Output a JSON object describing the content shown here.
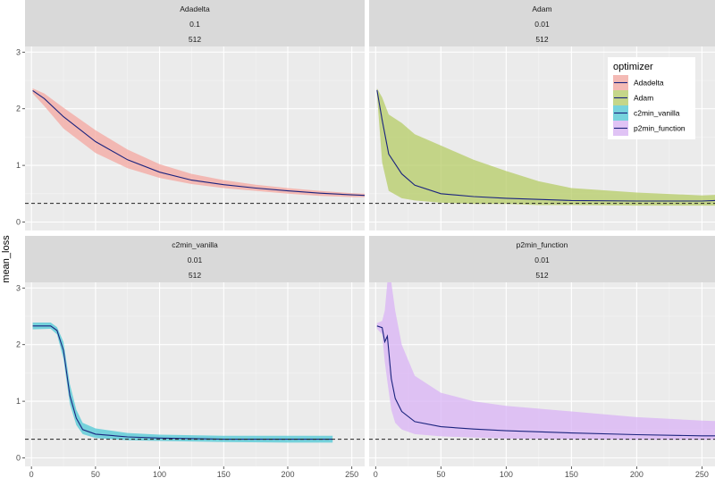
{
  "chart_data": {
    "type": "line",
    "ylabel": "mean_loss",
    "xlabel": "",
    "xlim": [
      -5,
      260
    ],
    "ylim": [
      -0.15,
      3.1
    ],
    "x_ticks": [
      0,
      50,
      100,
      150,
      200,
      250
    ],
    "y_ticks": [
      0,
      1,
      2,
      3
    ],
    "grid": true,
    "legend_position": "inside-top-right",
    "legend_title": "optimizer",
    "reference_line": {
      "y": 0.33,
      "style": "dashed"
    },
    "series": [
      {
        "name": "Adadelta",
        "facet_strip": [
          "Adadelta",
          "0.1",
          "512"
        ],
        "ribbon_color": "#f4a7a0",
        "line_color": "#1a237e",
        "mean": [
          [
            1,
            2.32
          ],
          [
            10,
            2.18
          ],
          [
            25,
            1.86
          ],
          [
            50,
            1.42
          ],
          [
            75,
            1.1
          ],
          [
            100,
            0.88
          ],
          [
            125,
            0.74
          ],
          [
            150,
            0.66
          ],
          [
            175,
            0.6
          ],
          [
            200,
            0.55
          ],
          [
            225,
            0.51
          ],
          [
            250,
            0.48
          ],
          [
            260,
            0.47
          ]
        ],
        "ribbon": [
          [
            1,
            2.27,
            2.36
          ],
          [
            10,
            2.05,
            2.27
          ],
          [
            25,
            1.65,
            2.02
          ],
          [
            50,
            1.22,
            1.62
          ],
          [
            75,
            0.95,
            1.28
          ],
          [
            100,
            0.78,
            1.02
          ],
          [
            125,
            0.67,
            0.85
          ],
          [
            150,
            0.6,
            0.74
          ],
          [
            175,
            0.55,
            0.66
          ],
          [
            200,
            0.5,
            0.6
          ],
          [
            225,
            0.46,
            0.55
          ],
          [
            250,
            0.44,
            0.51
          ],
          [
            260,
            0.44,
            0.5
          ]
        ]
      },
      {
        "name": "Adam",
        "facet_strip": [
          "Adam",
          "0.01",
          "512"
        ],
        "ribbon_color": "#b5cc66",
        "line_color": "#1a237e",
        "mean": [
          [
            1,
            2.33
          ],
          [
            5,
            1.8
          ],
          [
            10,
            1.2
          ],
          [
            20,
            0.85
          ],
          [
            30,
            0.65
          ],
          [
            50,
            0.5
          ],
          [
            75,
            0.45
          ],
          [
            100,
            0.42
          ],
          [
            150,
            0.38
          ],
          [
            200,
            0.37
          ],
          [
            250,
            0.37
          ],
          [
            260,
            0.38
          ]
        ],
        "ribbon": [
          [
            1,
            2.25,
            2.36
          ],
          [
            5,
            1.05,
            2.2
          ],
          [
            10,
            0.55,
            1.9
          ],
          [
            20,
            0.42,
            1.75
          ],
          [
            30,
            0.38,
            1.55
          ],
          [
            50,
            0.34,
            1.35
          ],
          [
            75,
            0.32,
            1.1
          ],
          [
            100,
            0.32,
            0.9
          ],
          [
            125,
            0.3,
            0.72
          ],
          [
            150,
            0.3,
            0.6
          ],
          [
            200,
            0.29,
            0.52
          ],
          [
            250,
            0.29,
            0.47
          ],
          [
            260,
            0.29,
            0.48
          ]
        ]
      },
      {
        "name": "c2min_vanilla",
        "facet_strip": [
          "c2min_vanilla",
          "0.01",
          "512"
        ],
        "ribbon_color": "#4ec8d6",
        "line_color": "#1a237e",
        "mean": [
          [
            1,
            2.33
          ],
          [
            15,
            2.33
          ],
          [
            20,
            2.25
          ],
          [
            25,
            1.9
          ],
          [
            30,
            1.1
          ],
          [
            35,
            0.7
          ],
          [
            40,
            0.5
          ],
          [
            50,
            0.42
          ],
          [
            75,
            0.37
          ],
          [
            100,
            0.35
          ],
          [
            150,
            0.33
          ],
          [
            200,
            0.33
          ],
          [
            235,
            0.33
          ]
        ],
        "ribbon": [
          [
            1,
            2.27,
            2.39
          ],
          [
            15,
            2.28,
            2.39
          ],
          [
            20,
            2.18,
            2.31
          ],
          [
            25,
            1.75,
            2.05
          ],
          [
            30,
            0.95,
            1.3
          ],
          [
            35,
            0.58,
            0.85
          ],
          [
            40,
            0.42,
            0.62
          ],
          [
            50,
            0.35,
            0.52
          ],
          [
            75,
            0.31,
            0.44
          ],
          [
            100,
            0.3,
            0.41
          ],
          [
            150,
            0.28,
            0.39
          ],
          [
            200,
            0.27,
            0.39
          ],
          [
            235,
            0.27,
            0.39
          ]
        ]
      },
      {
        "name": "p2min_function",
        "facet_strip": [
          "p2min_function",
          "0.01",
          "512"
        ],
        "ribbon_color": "#d9b3f5",
        "line_color": "#1a237e",
        "mean": [
          [
            1,
            2.33
          ],
          [
            5,
            2.3
          ],
          [
            7,
            2.05
          ],
          [
            9,
            2.15
          ],
          [
            12,
            1.4
          ],
          [
            15,
            1.05
          ],
          [
            20,
            0.82
          ],
          [
            30,
            0.64
          ],
          [
            50,
            0.55
          ],
          [
            75,
            0.51
          ],
          [
            100,
            0.48
          ],
          [
            150,
            0.44
          ],
          [
            200,
            0.41
          ],
          [
            250,
            0.39
          ],
          [
            260,
            0.39
          ]
        ],
        "ribbon": [
          [
            1,
            2.28,
            2.38
          ],
          [
            5,
            2.18,
            2.42
          ],
          [
            7,
            1.7,
            2.6
          ],
          [
            9,
            1.35,
            3.1
          ],
          [
            12,
            0.85,
            3.1
          ],
          [
            15,
            0.62,
            2.6
          ],
          [
            20,
            0.5,
            2.0
          ],
          [
            30,
            0.42,
            1.45
          ],
          [
            50,
            0.38,
            1.15
          ],
          [
            75,
            0.36,
            1.0
          ],
          [
            100,
            0.34,
            0.92
          ],
          [
            150,
            0.33,
            0.82
          ],
          [
            200,
            0.32,
            0.72
          ],
          [
            250,
            0.32,
            0.66
          ],
          [
            260,
            0.32,
            0.65
          ]
        ]
      }
    ]
  }
}
